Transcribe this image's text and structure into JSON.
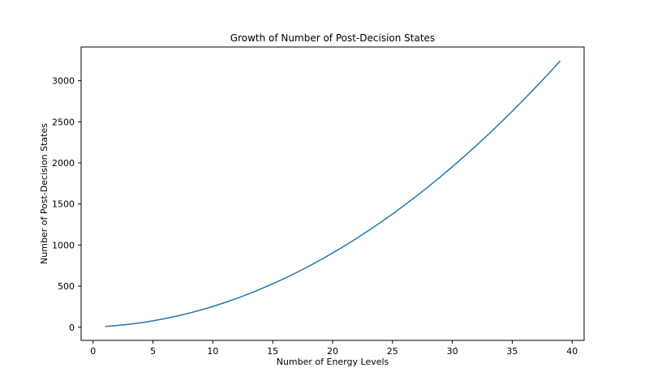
{
  "chart_data": {
    "type": "line",
    "title": "Growth of Number of Post-Decision States",
    "xlabel": "Number of Energy Levels",
    "ylabel": "Number of Post-Decision States",
    "xlim": [
      -1,
      41
    ],
    "ylim": [
      -160,
      3410
    ],
    "xticks": [
      0,
      5,
      10,
      15,
      20,
      25,
      30,
      35,
      40
    ],
    "yticks": [
      0,
      500,
      1000,
      1500,
      2000,
      2500,
      3000
    ],
    "grid": false,
    "line_color": "#1f77b4",
    "series": [
      {
        "x": [
          1,
          2,
          3,
          4,
          5,
          6,
          7,
          8,
          9,
          10,
          11,
          12,
          13,
          14,
          15,
          16,
          17,
          18,
          19,
          20,
          21,
          22,
          23,
          24,
          25,
          26,
          27,
          28,
          29,
          30,
          31,
          32,
          33,
          34,
          35,
          36,
          37,
          38,
          39
        ],
        "values": [
          10,
          21,
          36,
          55,
          78,
          105,
          136,
          171,
          210,
          253,
          300,
          351,
          406,
          465,
          528,
          595,
          666,
          741,
          820,
          903,
          990,
          1081,
          1176,
          1275,
          1378,
          1485,
          1596,
          1711,
          1830,
          1953,
          2080,
          2211,
          2346,
          2485,
          2628,
          2775,
          2926,
          3081,
          3240
        ]
      }
    ]
  }
}
